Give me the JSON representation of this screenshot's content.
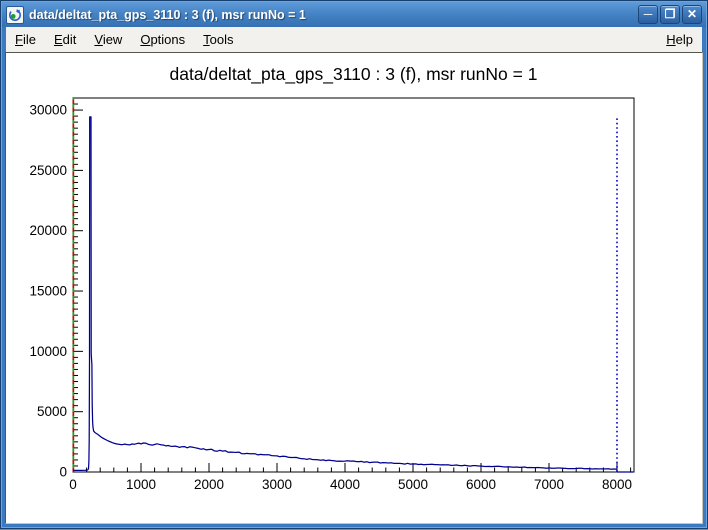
{
  "window": {
    "title": "data/deltat_pta_gps_3110 : 3 (f), msr runNo = 1",
    "icon": "root-logo",
    "controls": {
      "minimize": "─",
      "maximize": "❐",
      "close": "✕"
    }
  },
  "menu": {
    "items": [
      {
        "label": "File"
      },
      {
        "label": "Edit"
      },
      {
        "label": "View"
      },
      {
        "label": "Options"
      },
      {
        "label": "Tools"
      }
    ],
    "help": {
      "label": "Help"
    }
  },
  "chart_data": {
    "type": "histogram",
    "title": "data/deltat_pta_gps_3110 : 3 (f), msr runNo = 1",
    "xlabel": "",
    "ylabel": "",
    "xlim": [
      0,
      8250
    ],
    "ylim": [
      0,
      31000
    ],
    "x_major_ticks": [
      0,
      1000,
      2000,
      3000,
      4000,
      5000,
      6000,
      7000,
      8000
    ],
    "x_minor_step": 200,
    "y_major_ticks": [
      0,
      5000,
      10000,
      15000,
      20000,
      25000,
      30000
    ],
    "y_minor_step": 500,
    "grid": false,
    "legend": "none",
    "series": [
      {
        "name": "deltat_pta_gps_3110",
        "color": "#000090",
        "peak_value": 29430,
        "peak_x": 255,
        "points": [
          [
            0,
            130
          ],
          [
            120,
            135
          ],
          [
            180,
            140
          ],
          [
            215,
            165
          ],
          [
            228,
            260
          ],
          [
            234,
            900
          ],
          [
            238,
            2600
          ],
          [
            242,
            9200
          ],
          [
            246,
            29430
          ],
          [
            264,
            29430
          ],
          [
            268,
            9800
          ],
          [
            274,
            9250
          ],
          [
            278,
            8900
          ],
          [
            282,
            5600
          ],
          [
            288,
            4200
          ],
          [
            294,
            3700
          ],
          [
            305,
            3380
          ],
          [
            330,
            3240
          ],
          [
            365,
            3120
          ],
          [
            410,
            2910
          ],
          [
            460,
            2740
          ],
          [
            520,
            2570
          ],
          [
            580,
            2430
          ],
          [
            650,
            2320
          ],
          [
            720,
            2265
          ],
          [
            800,
            2270
          ],
          [
            900,
            2300
          ],
          [
            1000,
            2330
          ],
          [
            1100,
            2310
          ],
          [
            1200,
            2280
          ],
          [
            1300,
            2245
          ],
          [
            1400,
            2195
          ],
          [
            1500,
            2145
          ],
          [
            1600,
            2100
          ],
          [
            1800,
            2005
          ],
          [
            2000,
            1865
          ],
          [
            2200,
            1735
          ],
          [
            2400,
            1625
          ],
          [
            2600,
            1515
          ],
          [
            2800,
            1425
          ],
          [
            3000,
            1335
          ],
          [
            3200,
            1205
          ],
          [
            3400,
            1095
          ],
          [
            3600,
            1015
          ],
          [
            3800,
            950
          ],
          [
            4000,
            905
          ],
          [
            4200,
            855
          ],
          [
            4400,
            805
          ],
          [
            4600,
            760
          ],
          [
            4800,
            710
          ],
          [
            5000,
            665
          ],
          [
            5200,
            625
          ],
          [
            5400,
            590
          ],
          [
            5600,
            555
          ],
          [
            5800,
            522
          ],
          [
            6000,
            498
          ],
          [
            6200,
            462
          ],
          [
            6400,
            430
          ],
          [
            6600,
            396
          ],
          [
            6800,
            362
          ],
          [
            7000,
            336
          ],
          [
            7200,
            312
          ],
          [
            7400,
            292
          ],
          [
            7600,
            272
          ],
          [
            7800,
            257
          ],
          [
            7950,
            246
          ],
          [
            7998,
            238
          ],
          [
            8002,
            2
          ],
          [
            8235,
            2
          ]
        ]
      }
    ],
    "markers": [
      {
        "name": "marker-red-dashed",
        "x": 6,
        "color": "#e00000",
        "dash": "4 4",
        "dashoffset": 0,
        "y1": 0,
        "y2": 31000
      },
      {
        "name": "marker-green-dashed",
        "x": 6,
        "color": "#00b400",
        "dash": "4 4",
        "dashoffset": 4,
        "y1": 0,
        "y2": 31000
      },
      {
        "name": "marker-blue-dotted",
        "x": 8000,
        "color": "#0000cc",
        "dash": "1.6 2.8",
        "dashoffset": 0,
        "y1": 0,
        "y2": 29430
      }
    ]
  }
}
